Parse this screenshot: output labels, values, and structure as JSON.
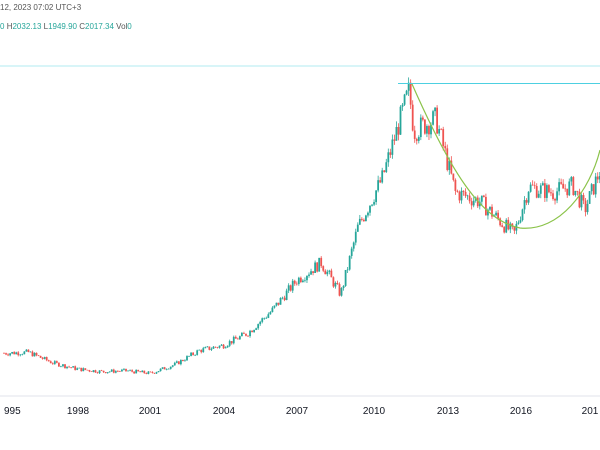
{
  "header": {
    "timestamp": "12, 2023 07:02 UTC+3",
    "ohlc": {
      "o_fragment": "0",
      "h_label": "H",
      "h_value": "2032.13",
      "l_label": "L",
      "l_value": "1949.90",
      "c_label": "C",
      "c_value": "2017.34",
      "vol_label": "Vol",
      "vol_value": "0"
    }
  },
  "colors": {
    "up": "#26a69a",
    "down": "#ef5350",
    "curve": "#8bc34a",
    "resistance": "#4dd0e1",
    "grid": "#b2ebf2"
  },
  "chart_data": {
    "type": "candlestick",
    "xaxis_ticks": [
      "995",
      "1998",
      "2001",
      "2004",
      "2007",
      "2010",
      "2013",
      "2016",
      "201"
    ],
    "annotations": [
      {
        "type": "horizontal_line",
        "value": 1920
      },
      {
        "type": "cup_curve"
      }
    ],
    "grid": false
  }
}
